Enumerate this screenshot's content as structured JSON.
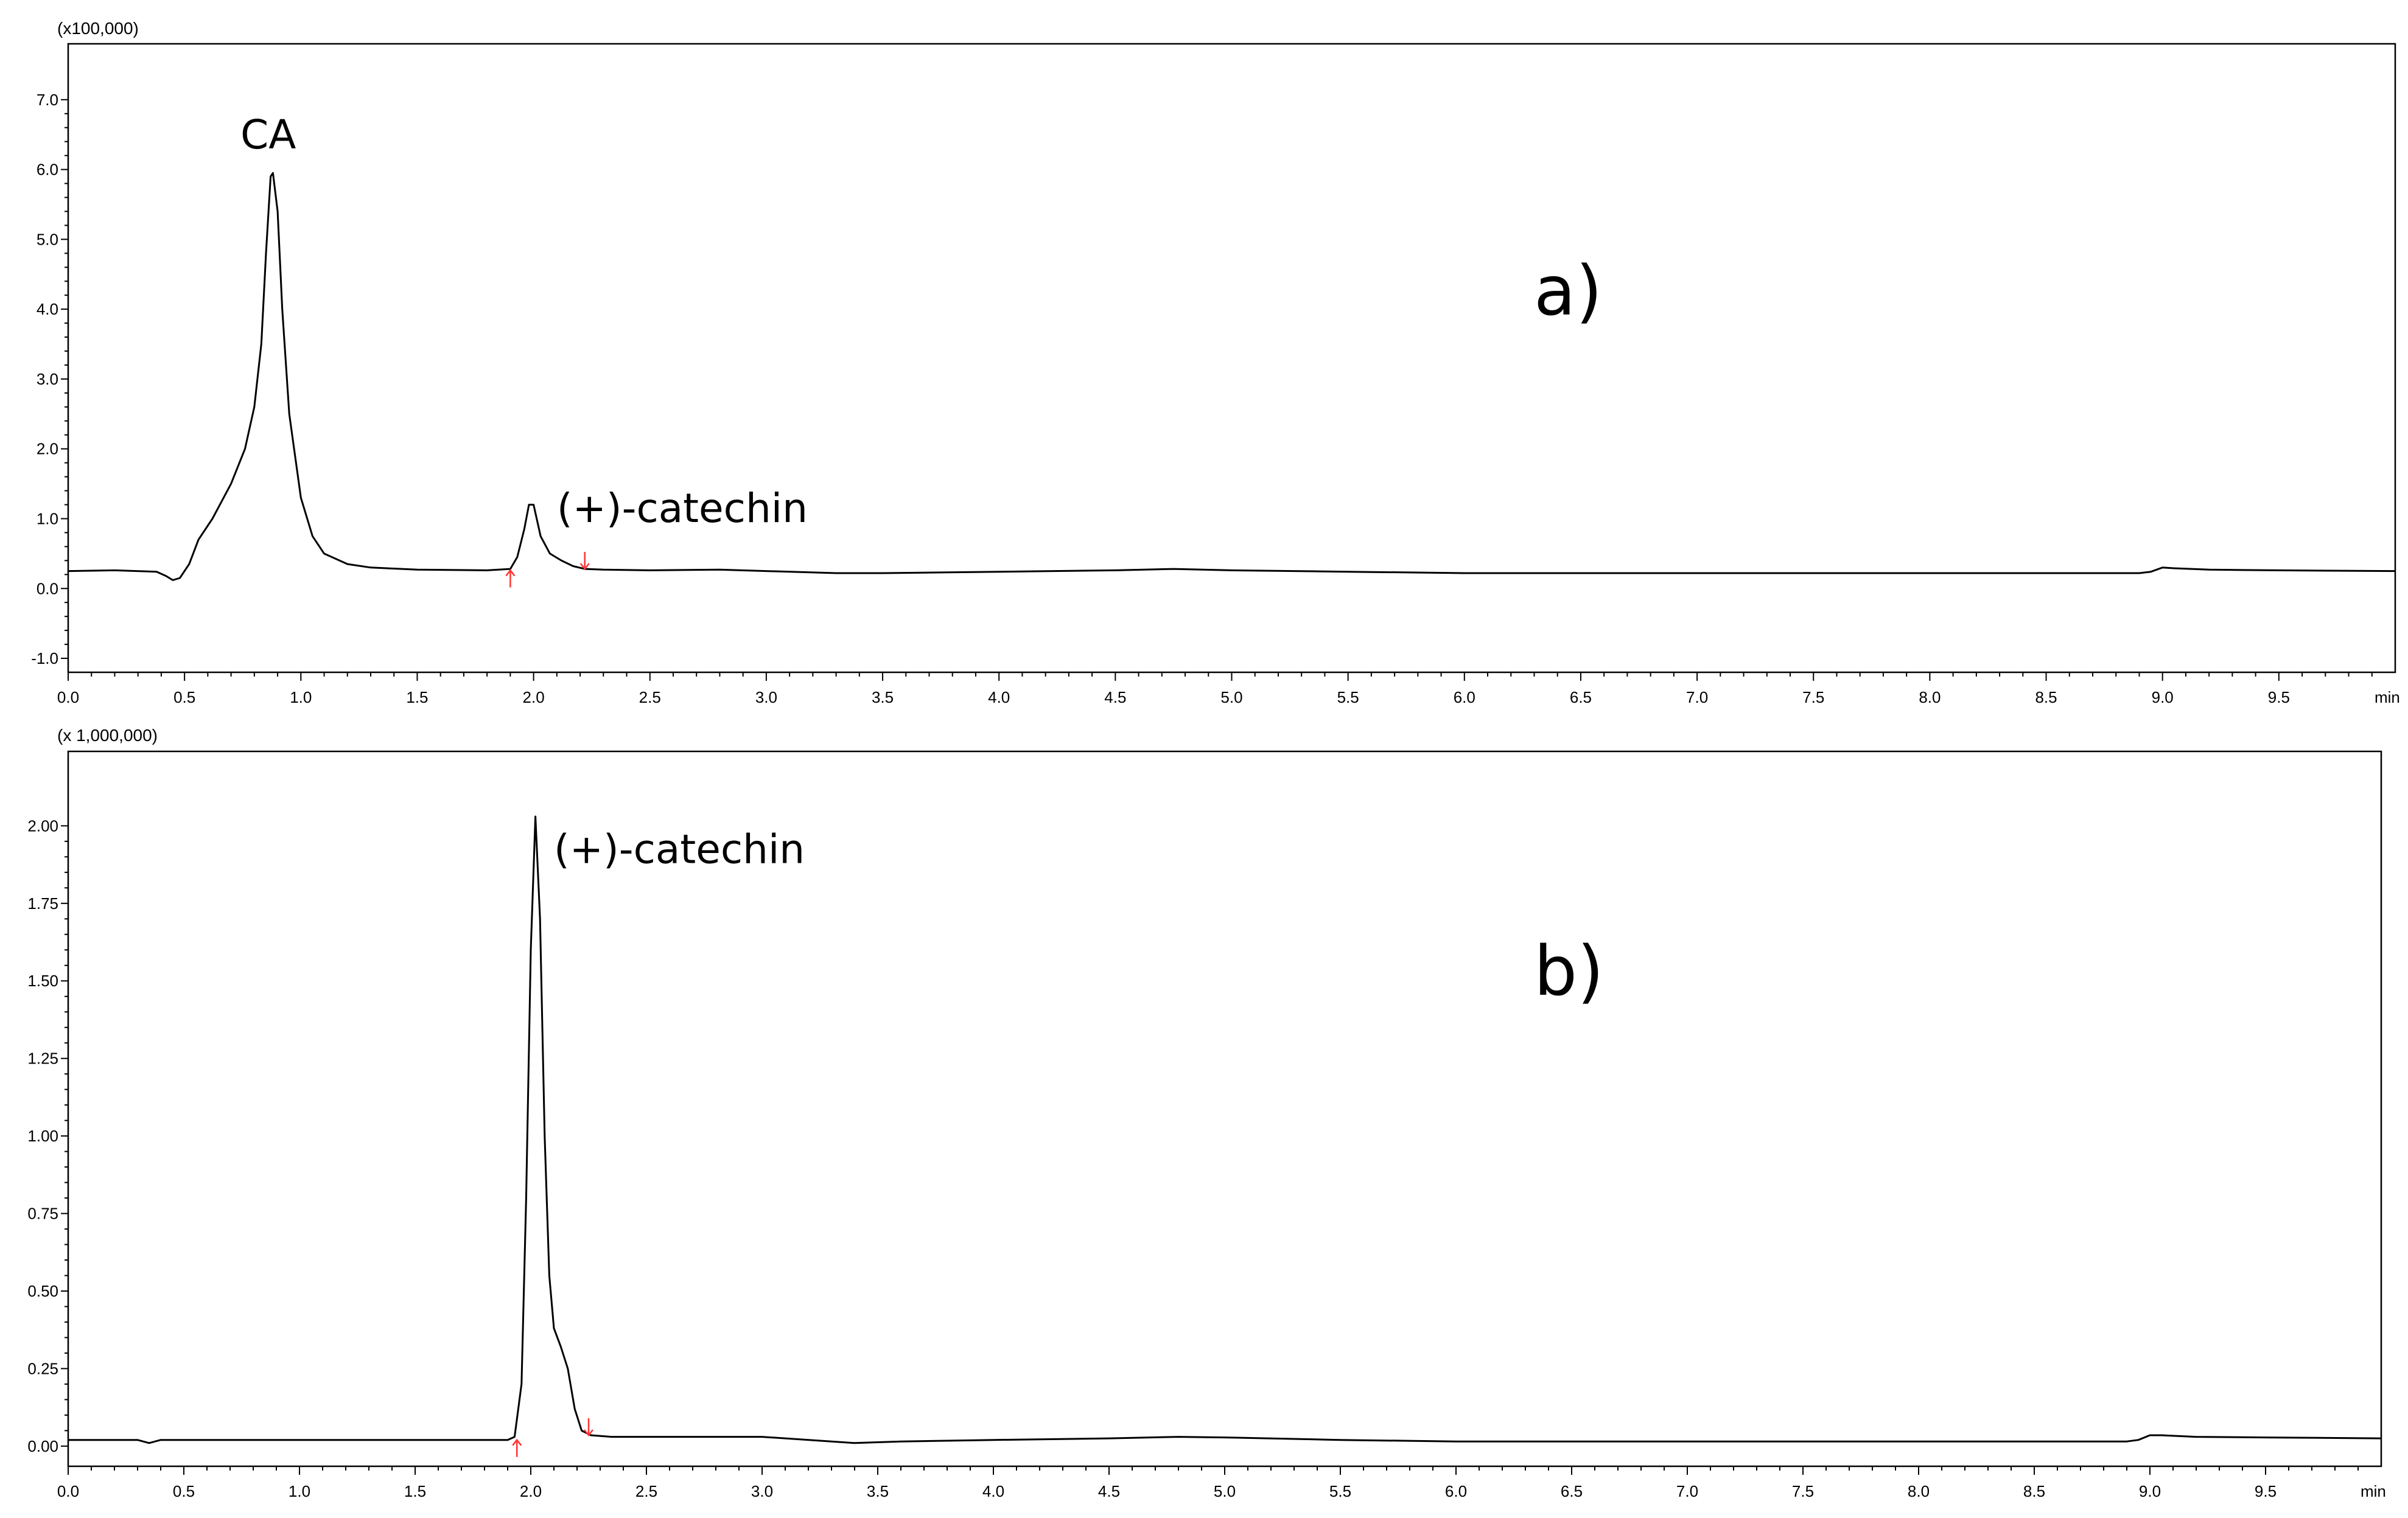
{
  "chart_data": [
    {
      "type": "line",
      "panel_label": "a)",
      "y_scale_label": "(x100,000)",
      "x_unit": "min",
      "xlim": [
        0,
        10
      ],
      "ylim": [
        -1.2,
        7.8
      ],
      "x_ticks": [
        "0.0",
        "0.5",
        "1.0",
        "1.5",
        "2.0",
        "2.5",
        "3.0",
        "3.5",
        "4.0",
        "4.5",
        "5.0",
        "5.5",
        "6.0",
        "6.5",
        "7.0",
        "7.5",
        "8.0",
        "8.5",
        "9.0",
        "9.5"
      ],
      "y_ticks": [
        "-1.0",
        "0.0",
        "1.0",
        "2.0",
        "3.0",
        "4.0",
        "5.0",
        "6.0",
        "7.0"
      ],
      "series": [
        {
          "x": [
            0.0,
            0.2,
            0.38,
            0.42,
            0.45,
            0.48,
            0.52,
            0.56,
            0.62,
            0.7,
            0.76,
            0.8,
            0.83,
            0.85,
            0.87,
            0.88,
            0.9,
            0.92,
            0.95,
            1.0,
            1.05,
            1.1,
            1.2,
            1.3,
            1.5,
            1.8,
            1.9,
            1.93,
            1.96,
            1.98,
            2.0,
            2.03,
            2.07,
            2.12,
            2.17,
            2.22,
            2.3,
            2.5,
            2.8,
            3.0,
            3.3,
            3.5,
            4.0,
            4.5,
            4.75,
            5.0,
            5.5,
            6.0,
            7.0,
            8.0,
            8.9,
            8.95,
            9.0,
            9.05,
            9.2,
            9.5,
            10.0
          ],
          "y": [
            0.25,
            0.26,
            0.24,
            0.18,
            0.12,
            0.15,
            0.35,
            0.7,
            1.0,
            1.5,
            2.0,
            2.6,
            3.5,
            4.8,
            5.9,
            5.95,
            5.4,
            4.0,
            2.5,
            1.3,
            0.75,
            0.5,
            0.35,
            0.3,
            0.27,
            0.26,
            0.28,
            0.45,
            0.85,
            1.2,
            1.2,
            0.75,
            0.5,
            0.4,
            0.32,
            0.28,
            0.27,
            0.26,
            0.27,
            0.25,
            0.22,
            0.22,
            0.24,
            0.26,
            0.28,
            0.26,
            0.24,
            0.22,
            0.22,
            0.22,
            0.22,
            0.24,
            0.3,
            0.29,
            0.27,
            0.26,
            0.25
          ]
        }
      ],
      "annotations": [
        {
          "text": "CA",
          "x": 0.86,
          "y": 6.3
        },
        {
          "text": "(+)-catechin",
          "x": 2.1,
          "y": 0.95
        }
      ],
      "peak_markers": [
        {
          "dir": "up",
          "x": 1.9,
          "y": 0.26
        },
        {
          "dir": "down",
          "x": 2.22,
          "y": 0.28
        }
      ]
    },
    {
      "type": "line",
      "panel_label": "b)",
      "y_scale_label": "(x 1,000,000)",
      "x_unit": "min",
      "xlim": [
        0,
        10
      ],
      "ylim": [
        -0.065,
        2.24
      ],
      "x_ticks": [
        "0.0",
        "0.5",
        "1.0",
        "1.5",
        "2.0",
        "2.5",
        "3.0",
        "3.5",
        "4.0",
        "4.5",
        "5.0",
        "5.5",
        "6.0",
        "6.5",
        "7.0",
        "7.5",
        "8.0",
        "8.5",
        "9.0",
        "9.5"
      ],
      "y_ticks": [
        "0.00",
        "0.25",
        "0.50",
        "0.75",
        "1.00",
        "1.25",
        "1.50",
        "1.75",
        "2.00"
      ],
      "series": [
        {
          "x": [
            0.0,
            0.3,
            0.35,
            0.4,
            0.6,
            1.0,
            1.5,
            1.9,
            1.93,
            1.96,
            1.98,
            2.0,
            2.02,
            2.04,
            2.06,
            2.08,
            2.1,
            2.13,
            2.16,
            2.19,
            2.22,
            2.26,
            2.35,
            2.6,
            3.0,
            3.3,
            3.4,
            3.6,
            4.0,
            4.5,
            4.8,
            5.0,
            5.5,
            6.0,
            7.0,
            8.0,
            8.9,
            8.95,
            9.0,
            9.05,
            9.2,
            9.5,
            10.0
          ],
          "y": [
            0.02,
            0.02,
            0.01,
            0.02,
            0.02,
            0.02,
            0.02,
            0.02,
            0.03,
            0.2,
            0.8,
            1.6,
            2.03,
            1.7,
            1.0,
            0.55,
            0.38,
            0.32,
            0.25,
            0.12,
            0.05,
            0.035,
            0.03,
            0.03,
            0.03,
            0.015,
            0.01,
            0.015,
            0.02,
            0.025,
            0.03,
            0.028,
            0.02,
            0.015,
            0.015,
            0.015,
            0.015,
            0.02,
            0.035,
            0.035,
            0.03,
            0.028,
            0.025
          ]
        }
      ],
      "annotations": [
        {
          "text": "(+)-catechin",
          "x": 2.1,
          "y": 1.88
        }
      ],
      "peak_markers": [
        {
          "dir": "up",
          "x": 1.94,
          "y": 0.02
        },
        {
          "dir": "down",
          "x": 2.25,
          "y": 0.035
        }
      ]
    }
  ]
}
